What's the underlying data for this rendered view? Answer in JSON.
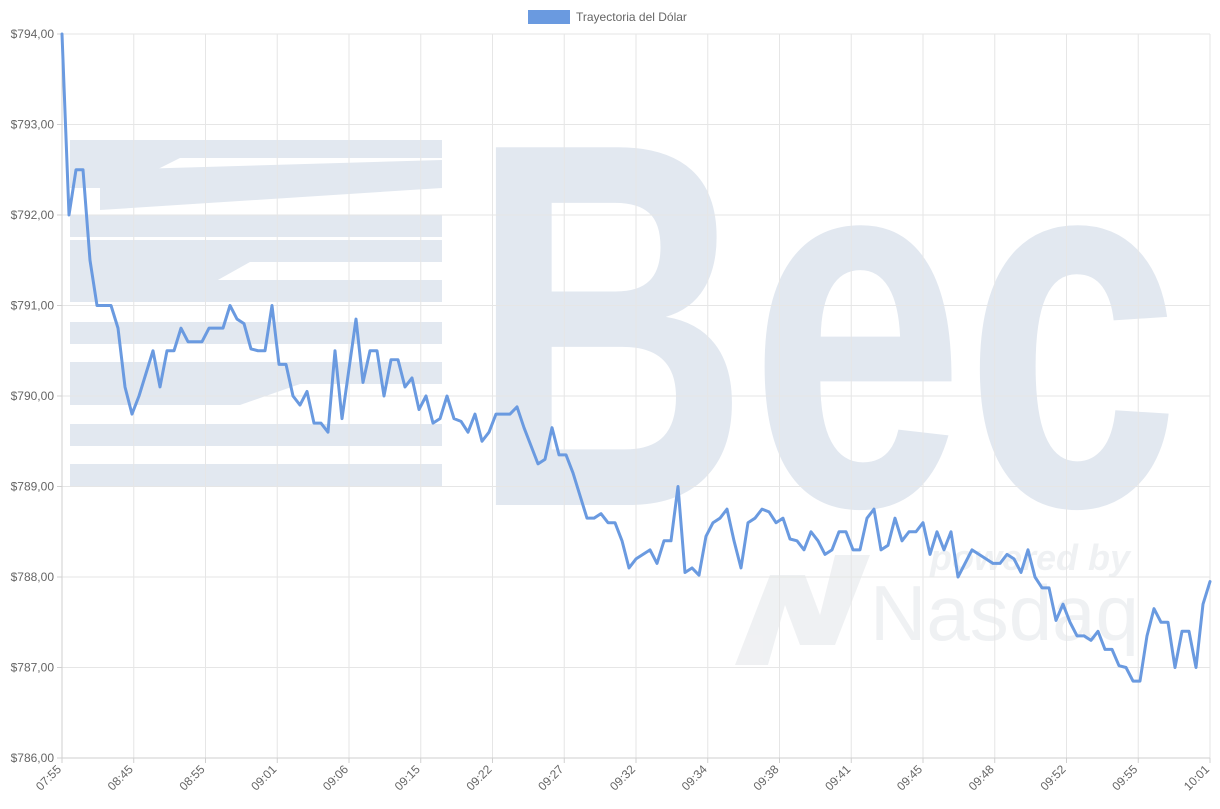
{
  "legend": {
    "label": "Trayectoria del Dólar",
    "color": "#6a9ae0"
  },
  "watermark": {
    "brand": "Bec",
    "tagline": "powered by",
    "partner": "Nasdaq"
  },
  "chart_data": {
    "type": "line",
    "title": "",
    "xlabel": "",
    "ylabel": "",
    "ylim": [
      786,
      794
    ],
    "ytick_step": 1,
    "ytick_labels": [
      "$786,00",
      "$787,00",
      "$788,00",
      "$789,00",
      "$790,00",
      "$791,00",
      "$792,00",
      "$793,00",
      "$794,00"
    ],
    "xtick_labels": [
      "07:55",
      "08:45",
      "08:55",
      "09:01",
      "09:06",
      "09:15",
      "09:22",
      "09:27",
      "09:32",
      "09:34",
      "09:38",
      "09:41",
      "09:45",
      "09:48",
      "09:52",
      "09:55",
      "10:01"
    ],
    "grid": true,
    "legend_position": "top",
    "series": [
      {
        "name": "Trayectoria del Dólar",
        "color": "#6a9ae0",
        "values": [
          794.0,
          792.0,
          792.5,
          792.5,
          791.5,
          791.0,
          791.0,
          791.0,
          790.75,
          790.1,
          789.8,
          790.0,
          790.25,
          790.5,
          790.1,
          790.5,
          790.5,
          790.75,
          790.6,
          790.6,
          790.6,
          790.75,
          790.75,
          790.75,
          791.0,
          790.85,
          790.8,
          790.52,
          790.5,
          790.5,
          791.0,
          790.35,
          790.35,
          790.0,
          789.9,
          790.05,
          789.7,
          789.7,
          789.6,
          790.5,
          789.75,
          790.3,
          790.85,
          790.15,
          790.5,
          790.5,
          790.0,
          790.4,
          790.4,
          790.1,
          790.2,
          789.85,
          790.0,
          789.7,
          789.75,
          790.0,
          789.75,
          789.72,
          789.6,
          789.8,
          789.5,
          789.6,
          789.8,
          789.8,
          789.8,
          789.88,
          789.65,
          789.45,
          789.25,
          789.3,
          789.65,
          789.35,
          789.35,
          789.15,
          788.9,
          788.65,
          788.65,
          788.7,
          788.6,
          788.6,
          788.4,
          788.1,
          788.2,
          788.25,
          788.3,
          788.15,
          788.4,
          788.4,
          789.0,
          788.05,
          788.1,
          788.02,
          788.45,
          788.6,
          788.65,
          788.75,
          788.4,
          788.1,
          788.6,
          788.65,
          788.75,
          788.72,
          788.6,
          788.65,
          788.42,
          788.4,
          788.3,
          788.5,
          788.4,
          788.25,
          788.3,
          788.5,
          788.5,
          788.3,
          788.3,
          788.65,
          788.75,
          788.3,
          788.35,
          788.65,
          788.4,
          788.5,
          788.5,
          788.6,
          788.25,
          788.5,
          788.3,
          788.5,
          788.0,
          788.15,
          788.3,
          788.25,
          788.2,
          788.15,
          788.15,
          788.25,
          788.2,
          788.05,
          788.3,
          788.0,
          787.88,
          787.88,
          787.52,
          787.7,
          787.5,
          787.35,
          787.35,
          787.3,
          787.4,
          787.2,
          787.2,
          787.02,
          787.0,
          786.85,
          786.85,
          787.35,
          787.65,
          787.5,
          787.5,
          787.0,
          787.4,
          787.4,
          787.0,
          787.7,
          787.95
        ]
      }
    ]
  }
}
